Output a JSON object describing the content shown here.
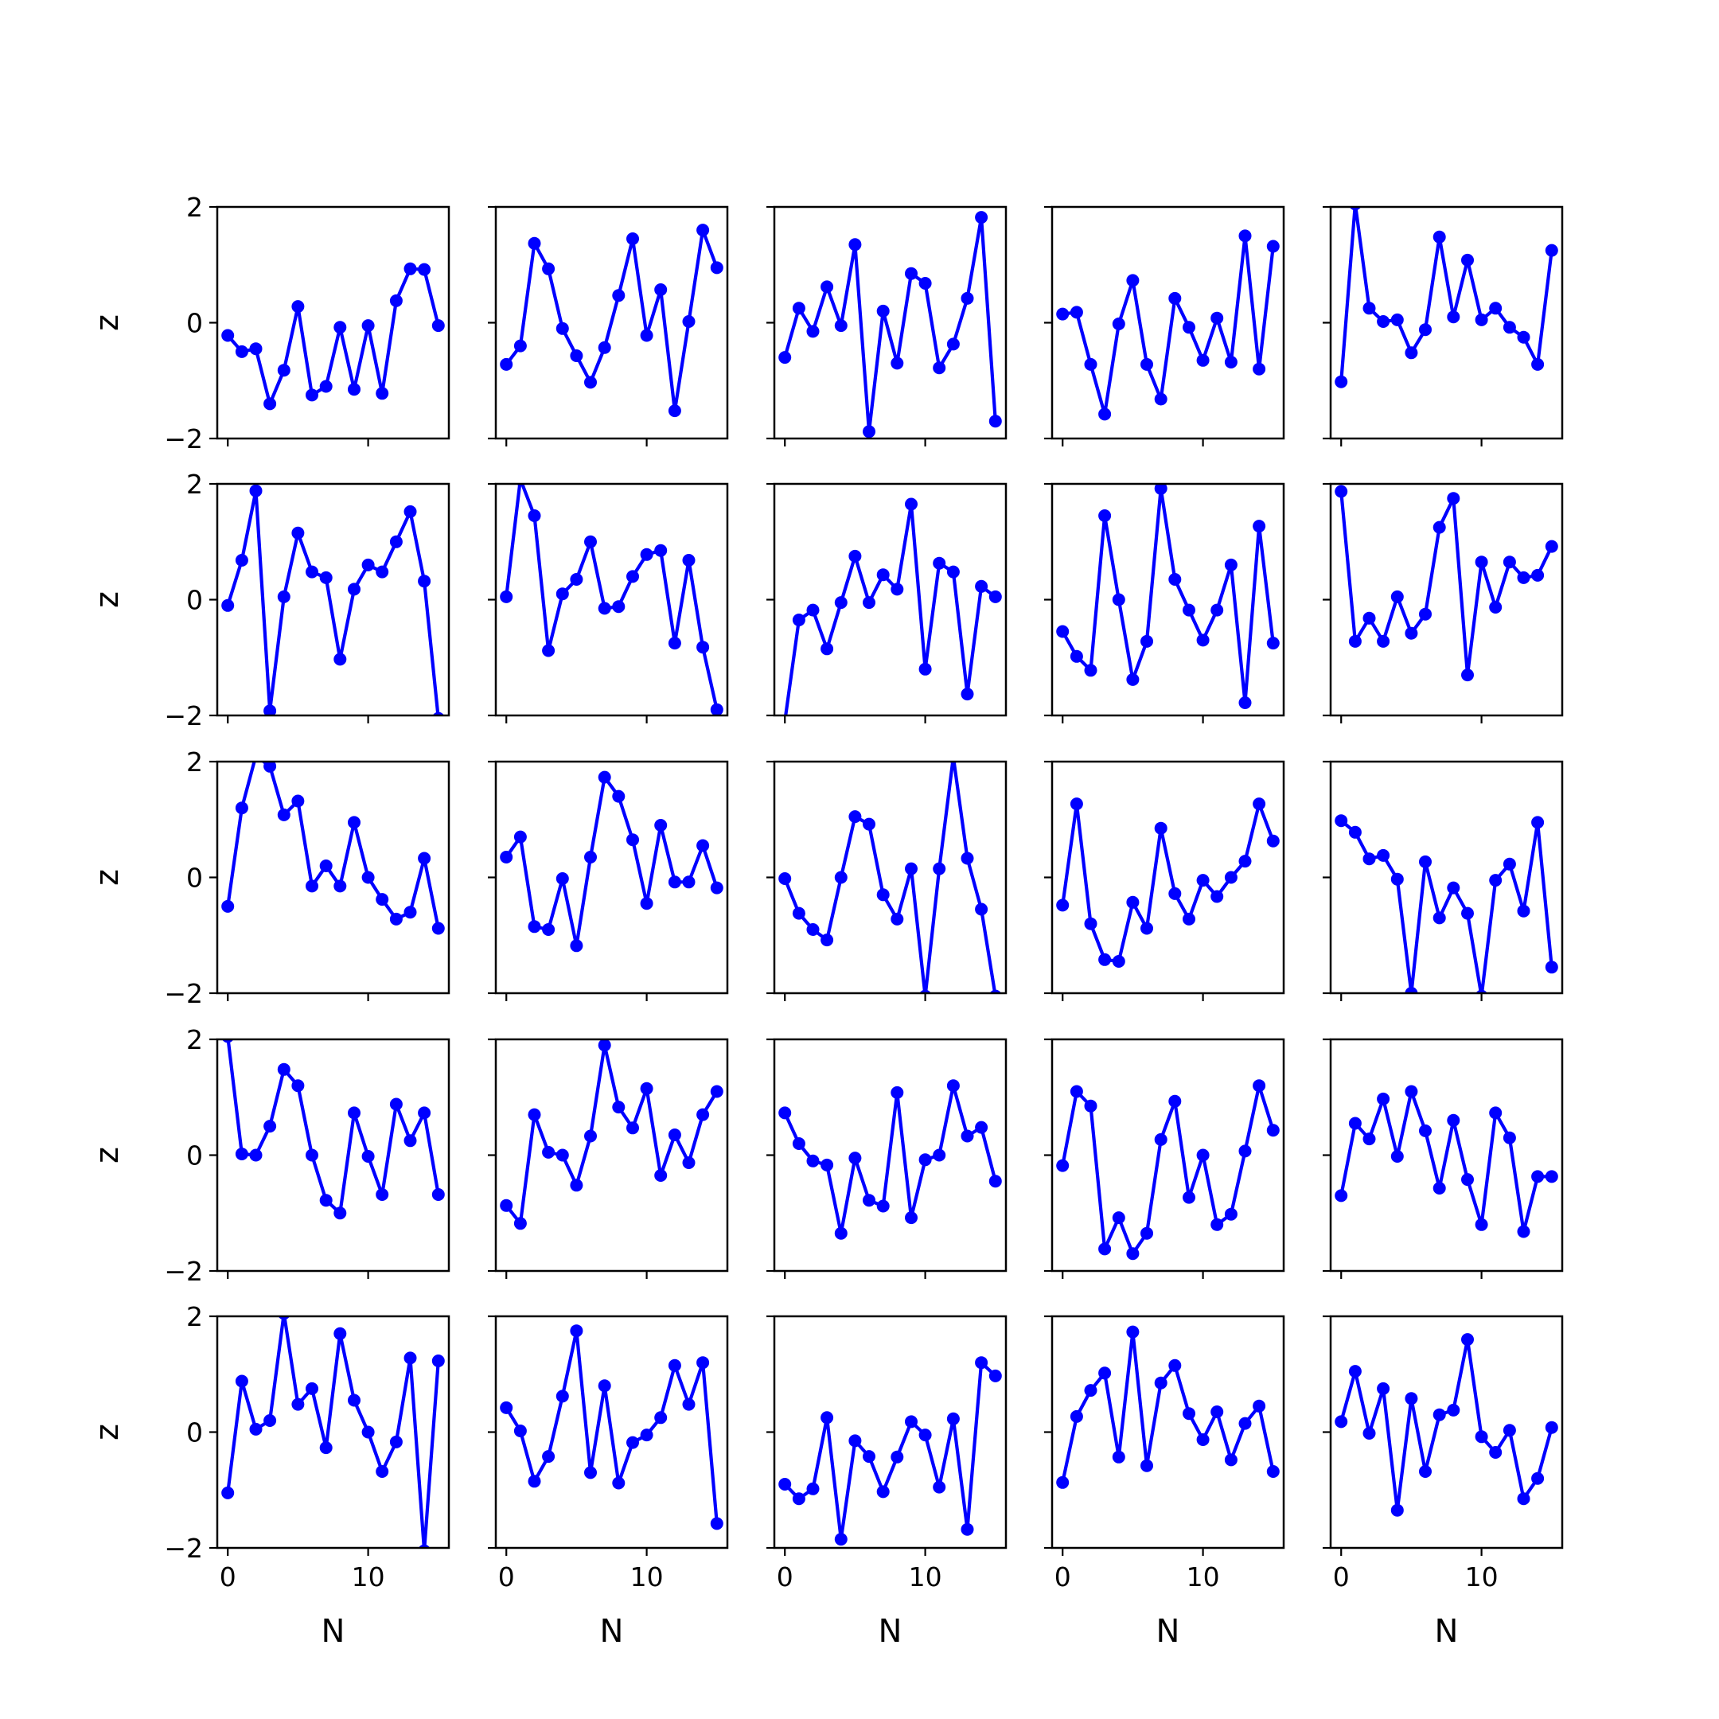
{
  "chart_data": {
    "type": "line",
    "layout": "5x5 grid of small multiples, shared axes",
    "xlabel": "N",
    "ylabel": "z",
    "xlim": [
      -0.75,
      15.75
    ],
    "ylim": [
      -2,
      2
    ],
    "xticks": [
      0,
      10
    ],
    "yticks": [
      -2,
      0,
      2
    ],
    "x": [
      0,
      1,
      2,
      3,
      4,
      5,
      6,
      7,
      8,
      9,
      10,
      11,
      12,
      13,
      14,
      15
    ],
    "line_color": "#0000ff",
    "marker": "circle",
    "grid": false,
    "legend": "none",
    "panels": [
      {
        "row": 1,
        "col": 1,
        "values": [
          -0.22,
          -0.5,
          -0.45,
          -1.4,
          -0.82,
          0.28,
          -1.25,
          -1.1,
          -0.08,
          -1.15,
          -0.05,
          -1.22,
          0.38,
          0.93,
          0.92,
          -0.05
        ]
      },
      {
        "row": 1,
        "col": 2,
        "values": [
          -0.72,
          -0.4,
          1.37,
          0.93,
          -0.1,
          -0.57,
          -1.03,
          -0.43,
          0.47,
          1.45,
          -0.22,
          0.57,
          -1.52,
          0.02,
          1.6,
          0.95
        ]
      },
      {
        "row": 1,
        "col": 3,
        "values": [
          -0.6,
          0.25,
          -0.15,
          0.62,
          -0.05,
          1.35,
          -1.88,
          0.2,
          -0.7,
          0.85,
          0.68,
          -0.78,
          -0.37,
          0.42,
          1.82,
          -1.7
        ]
      },
      {
        "row": 1,
        "col": 4,
        "values": [
          0.15,
          0.18,
          -0.72,
          -1.58,
          -0.02,
          0.73,
          -0.72,
          -1.32,
          0.42,
          -0.08,
          -0.65,
          0.08,
          -0.68,
          1.5,
          -0.8,
          1.32
        ]
      },
      {
        "row": 1,
        "col": 5,
        "values": [
          -1.02,
          2.05,
          0.25,
          0.02,
          0.05,
          -0.52,
          -0.12,
          1.48,
          0.1,
          1.08,
          0.05,
          0.25,
          -0.08,
          -0.25,
          -0.72,
          1.25
        ]
      },
      {
        "row": 2,
        "col": 1,
        "values": [
          -0.1,
          0.68,
          1.88,
          -1.92,
          0.05,
          1.15,
          0.48,
          0.38,
          -1.03,
          0.18,
          0.6,
          0.48,
          1.0,
          1.52,
          0.32,
          -2.05
        ]
      },
      {
        "row": 2,
        "col": 2,
        "values": [
          0.05,
          2.08,
          1.45,
          -0.88,
          0.1,
          0.35,
          1.0,
          -0.15,
          -0.12,
          0.4,
          0.78,
          0.85,
          -0.75,
          0.68,
          -0.82,
          -1.9
        ]
      },
      {
        "row": 2,
        "col": 3,
        "values": [
          -2.1,
          -0.35,
          -0.18,
          -0.85,
          -0.05,
          0.75,
          -0.05,
          0.43,
          0.18,
          1.65,
          -1.2,
          0.63,
          0.48,
          -1.63,
          0.23,
          0.05
        ]
      },
      {
        "row": 2,
        "col": 4,
        "values": [
          -0.55,
          -0.98,
          -1.22,
          1.45,
          0.0,
          -1.38,
          -0.72,
          1.92,
          0.35,
          -0.18,
          -0.7,
          -0.18,
          0.6,
          -1.78,
          1.27,
          -0.75
        ]
      },
      {
        "row": 2,
        "col": 5,
        "values": [
          1.87,
          -0.72,
          -0.32,
          -0.72,
          0.05,
          -0.58,
          -0.25,
          1.25,
          1.75,
          -1.3,
          0.65,
          -0.13,
          0.65,
          0.38,
          0.42,
          0.92
        ]
      },
      {
        "row": 3,
        "col": 1,
        "values": [
          -0.5,
          1.2,
          2.1,
          1.92,
          1.08,
          1.32,
          -0.15,
          0.2,
          -0.15,
          0.95,
          0.0,
          -0.38,
          -0.72,
          -0.6,
          0.33,
          -0.88
        ]
      },
      {
        "row": 3,
        "col": 2,
        "values": [
          0.35,
          0.7,
          -0.85,
          -0.9,
          -0.02,
          -1.18,
          0.35,
          1.73,
          1.4,
          0.65,
          -0.45,
          0.9,
          -0.08,
          -0.08,
          0.55,
          -0.18
        ]
      },
      {
        "row": 3,
        "col": 3,
        "values": [
          -0.02,
          -0.62,
          -0.9,
          -1.08,
          0.0,
          1.05,
          0.92,
          -0.3,
          -0.72,
          0.15,
          -2.05,
          0.15,
          2.08,
          0.33,
          -0.55,
          -2.05
        ]
      },
      {
        "row": 3,
        "col": 4,
        "values": [
          -0.48,
          1.27,
          -0.8,
          -1.42,
          -1.45,
          -0.43,
          -0.88,
          0.85,
          -0.28,
          -0.72,
          -0.05,
          -0.33,
          0.0,
          0.28,
          1.27,
          0.63
        ]
      },
      {
        "row": 3,
        "col": 5,
        "values": [
          0.98,
          0.78,
          0.32,
          0.38,
          -0.03,
          -2.0,
          0.27,
          -0.7,
          -0.18,
          -0.62,
          -2.05,
          -0.05,
          0.23,
          -0.58,
          0.95,
          -1.55
        ]
      },
      {
        "row": 4,
        "col": 1,
        "values": [
          2.05,
          0.02,
          0.0,
          0.5,
          1.48,
          1.2,
          0.0,
          -0.78,
          -1.0,
          0.73,
          -0.02,
          -0.68,
          0.88,
          0.25,
          0.73,
          -0.68
        ]
      },
      {
        "row": 4,
        "col": 2,
        "values": [
          -0.87,
          -1.18,
          0.7,
          0.05,
          0.0,
          -0.52,
          0.33,
          1.9,
          0.83,
          0.47,
          1.15,
          -0.35,
          0.35,
          -0.13,
          0.7,
          1.1
        ]
      },
      {
        "row": 4,
        "col": 3,
        "values": [
          0.73,
          0.2,
          -0.1,
          -0.17,
          -1.35,
          -0.05,
          -0.78,
          -0.88,
          1.08,
          -1.08,
          -0.08,
          0.0,
          1.2,
          0.33,
          0.48,
          -0.45
        ]
      },
      {
        "row": 4,
        "col": 4,
        "values": [
          -0.18,
          1.1,
          0.85,
          -1.62,
          -1.08,
          -1.7,
          -1.35,
          0.27,
          0.93,
          -0.73,
          0.0,
          -1.2,
          -1.02,
          0.07,
          1.2,
          0.43
        ]
      },
      {
        "row": 4,
        "col": 5,
        "values": [
          -0.7,
          0.55,
          0.28,
          0.97,
          -0.02,
          1.1,
          0.42,
          -0.57,
          0.6,
          -0.42,
          -1.2,
          0.73,
          0.3,
          -1.32,
          -0.37,
          -0.37
        ]
      },
      {
        "row": 5,
        "col": 1,
        "values": [
          -1.05,
          0.88,
          0.05,
          0.2,
          2.05,
          0.48,
          0.75,
          -0.27,
          1.7,
          0.55,
          0.0,
          -0.68,
          -0.17,
          1.28,
          -2.05,
          1.23
        ]
      },
      {
        "row": 5,
        "col": 2,
        "values": [
          0.42,
          0.02,
          -0.85,
          -0.42,
          0.62,
          1.75,
          -0.7,
          0.8,
          -0.88,
          -0.18,
          -0.05,
          0.25,
          1.15,
          0.48,
          1.2,
          -1.58
        ]
      },
      {
        "row": 5,
        "col": 3,
        "values": [
          -0.9,
          -1.15,
          -0.98,
          0.25,
          -1.85,
          -0.15,
          -0.42,
          -1.03,
          -0.43,
          0.18,
          -0.05,
          -0.95,
          0.23,
          -1.68,
          1.2,
          0.97
        ]
      },
      {
        "row": 5,
        "col": 4,
        "values": [
          -0.87,
          0.27,
          0.72,
          1.02,
          -0.43,
          1.73,
          -0.58,
          0.85,
          1.15,
          0.32,
          -0.13,
          0.35,
          -0.48,
          0.15,
          0.45,
          -0.68
        ]
      },
      {
        "row": 5,
        "col": 5,
        "values": [
          0.18,
          1.05,
          -0.02,
          0.75,
          -1.35,
          0.58,
          -0.68,
          0.3,
          0.38,
          1.6,
          -0.08,
          -0.35,
          0.03,
          -1.15,
          -0.8,
          0.08
        ]
      }
    ]
  }
}
